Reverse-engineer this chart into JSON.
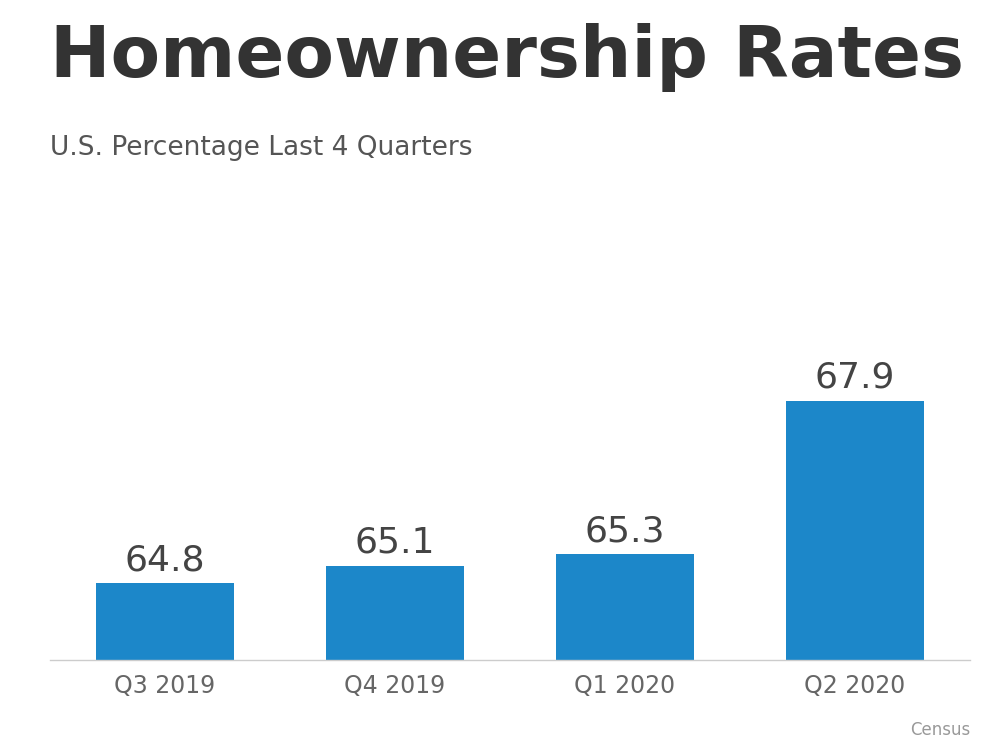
{
  "title": "Homeownership Rates",
  "subtitle": "U.S. Percentage Last 4 Quarters",
  "source": "Census",
  "categories": [
    "Q3 2019",
    "Q4 2019",
    "Q1 2020",
    "Q2 2020"
  ],
  "values": [
    64.8,
    65.1,
    65.3,
    67.9
  ],
  "bar_color": "#1C87C9",
  "background_color": "#ffffff",
  "title_color": "#333333",
  "subtitle_color": "#555555",
  "label_color": "#444444",
  "tick_color": "#666666",
  "source_color": "#999999",
  "title_fontsize": 52,
  "subtitle_fontsize": 19,
  "label_fontsize": 26,
  "tick_fontsize": 17,
  "source_fontsize": 12,
  "ylim_min": 63.5,
  "ylim_max": 70.5
}
